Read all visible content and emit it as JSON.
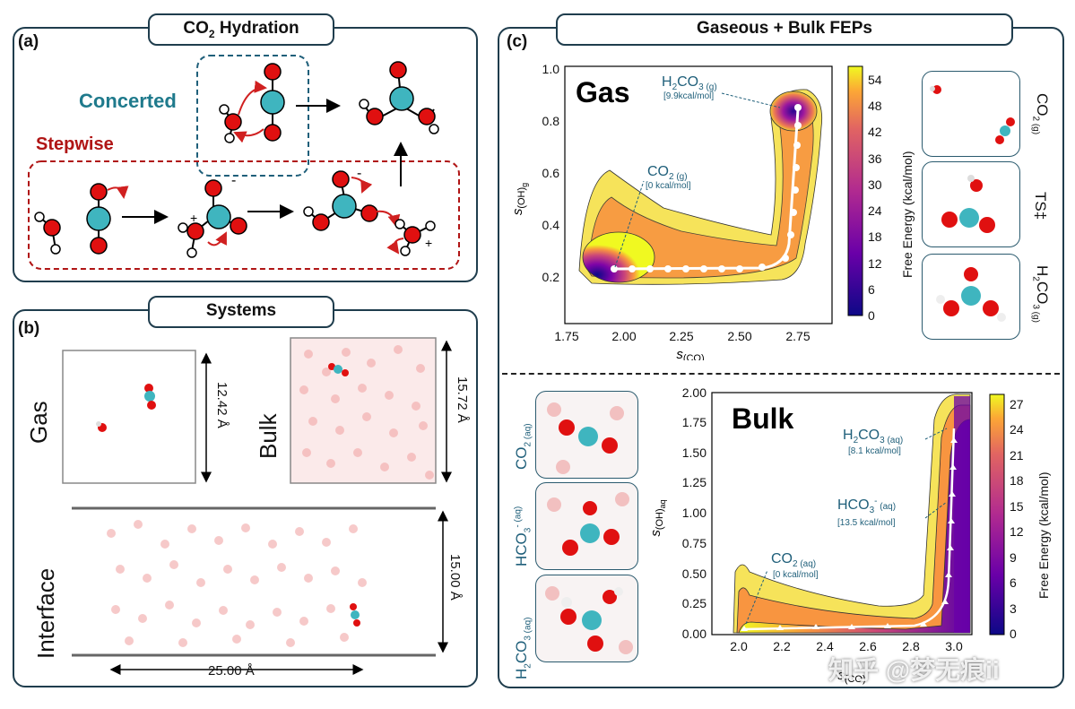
{
  "panels": {
    "a": {
      "label": "(a)",
      "title": "CO2 Hydration",
      "title_main": "CO",
      "title_sub": "2",
      "title_rest": " Hydration",
      "concerted": "Concerted",
      "stepwise": "Stepwise"
    },
    "b": {
      "label": "(b)",
      "title": "Systems",
      "gas": "Gas",
      "bulk": "Bulk",
      "interface": "Interface",
      "dim_gas": "12.42 Å",
      "dim_bulk": "15.72 Å",
      "dim_int_v": "15.00 Å",
      "dim_int_h": "25.00 Å"
    },
    "c": {
      "label": "(c)",
      "title": "Gaseous + Bulk FEPs"
    }
  },
  "gas_plot": {
    "title": "Gas",
    "xlabel_main": "s",
    "xlabel_sub": "(CO)",
    "ylabel_main": "s",
    "ylabel_sub": "(OH)",
    "ylabel_subsub": "g",
    "xticks": [
      "1.75",
      "2.00",
      "2.25",
      "2.50",
      "2.75"
    ],
    "yticks": [
      "0.2",
      "0.4",
      "0.6",
      "0.8",
      "1.0"
    ],
    "cbar_label": "Free Energy  (kcal/mol)",
    "cbar_ticks": [
      "0",
      "6",
      "12",
      "18",
      "24",
      "30",
      "36",
      "42",
      "48",
      "54"
    ],
    "ann_product": {
      "main": "H",
      "sub1": "2",
      "mid": "CO",
      "sub2": "3 (g)",
      "energy": "[9.9kcal/mol]"
    },
    "ann_reactant": {
      "main": "CO",
      "sub": "2 (g)",
      "energy": "[0 kcal/mol]"
    },
    "side_labels": [
      {
        "main": "CO",
        "sub": "2 (g)"
      },
      {
        "main": "TS‡",
        "sub": ""
      },
      {
        "main": "H",
        "sub": "2",
        "rest": "CO",
        "sub2": "3 (g)"
      }
    ]
  },
  "bulk_plot": {
    "title": "Bulk",
    "xlabel_main": "s",
    "xlabel_sub": "(CO)",
    "ylabel_main": "s",
    "ylabel_sub": "(OH)",
    "ylabel_subsub": "aq",
    "xticks": [
      "2.0",
      "2.2",
      "2.4",
      "2.6",
      "2.8",
      "3.0"
    ],
    "yticks": [
      "0.00",
      "0.25",
      "0.50",
      "0.75",
      "1.00",
      "1.25",
      "1.50",
      "1.75",
      "2.00"
    ],
    "cbar_label": "Free Energy  (kcal/mol)",
    "cbar_ticks": [
      "0",
      "3",
      "6",
      "9",
      "12",
      "15",
      "18",
      "21",
      "24",
      "27"
    ],
    "ann_product": {
      "main": "H",
      "sub1": "2",
      "mid": "CO",
      "sub2": "3 (aq)",
      "energy": "[8.1 kcal/mol]"
    },
    "ann_inter": {
      "main": "HCO",
      "sub": "3",
      "sup": "-",
      "sub2": " (aq)",
      "energy": "[13.5 kcal/mol]"
    },
    "ann_reactant": {
      "main": "CO",
      "sub": "2 (aq)",
      "energy": "[0 kcal/mol]"
    },
    "side_labels": [
      {
        "main": "CO",
        "sub": "2 (aq)"
      },
      {
        "main": "HCO",
        "sub": "3",
        "sup": "- (aq)"
      },
      {
        "main": "H",
        "sub": "2",
        "rest": "CO",
        "sub2": "3 (aq)"
      }
    ]
  },
  "watermark": "知乎 @梦无痕ii",
  "colors": {
    "teal": "#1f7a8c",
    "red": "#b01515",
    "frame": "#1f3d4d",
    "carbon": "#3fb5bf",
    "oxygen": "#e01010"
  }
}
